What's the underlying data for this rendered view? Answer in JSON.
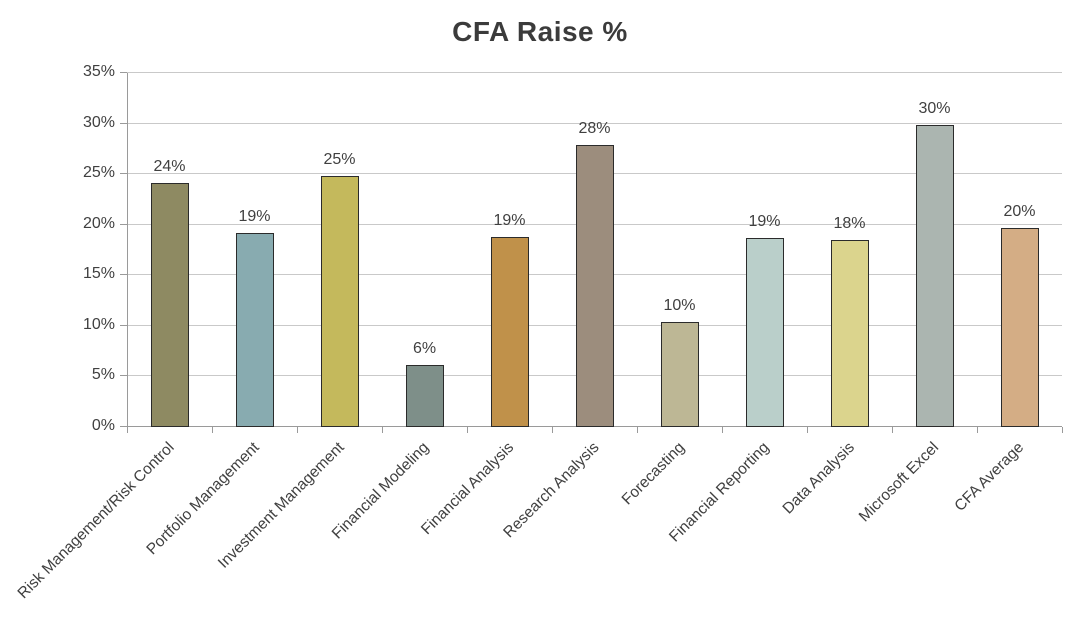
{
  "chart": {
    "title": "CFA Raise %"
  },
  "chart_data": {
    "type": "bar",
    "title": "CFA Raise %",
    "xlabel": "",
    "ylabel": "",
    "categories": [
      "Risk Management/Risk Control",
      "Portfolio Management",
      "Investment Management",
      "Financial Modeling",
      "Financial Analysis",
      "Research Analysis",
      "Forecasting",
      "Financial Reporting",
      "Data Analysis",
      "Microsoft Excel",
      "CFA Average"
    ],
    "values": [
      24,
      19,
      25,
      6,
      19,
      28,
      10,
      19,
      18,
      30,
      20
    ],
    "value_labels": [
      "24%",
      "19%",
      "25%",
      "6%",
      "19%",
      "28%",
      "10%",
      "19%",
      "18%",
      "30%",
      "20%"
    ],
    "precise_values": [
      24.1,
      19.2,
      24.8,
      6.1,
      18.8,
      27.9,
      10.4,
      18.7,
      18.5,
      29.9,
      19.7
    ],
    "bar_colors": [
      "#8e8a62",
      "#88abb0",
      "#c4b95c",
      "#7e8f89",
      "#c0914a",
      "#9c8d7d",
      "#bdb795",
      "#bacfca",
      "#dbd48d",
      "#abb5b0",
      "#d4ad85"
    ],
    "bar_border_color": "#2b2b2b",
    "ylim": [
      0,
      35
    ],
    "ytick_step": 5,
    "ytick_labels": [
      "0%",
      "5%",
      "10%",
      "15%",
      "20%",
      "25%",
      "30%",
      "35%"
    ],
    "grid": "horizontal",
    "legend": "none",
    "gridline_color": "#c9c9c9",
    "axis_color": "#9a9a9a",
    "text_color": "#404040",
    "title_color": "#3b3b3b",
    "background_color": "#ffffff"
  }
}
